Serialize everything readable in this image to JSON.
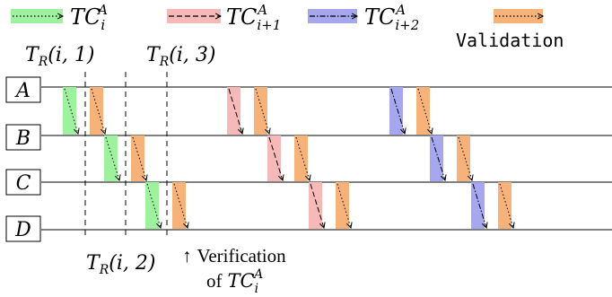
{
  "legend": {
    "items": [
      {
        "id": "tc_i",
        "base": "TC",
        "sub": "i",
        "sup": "A",
        "fill": "#9ef29e",
        "style": "dotted"
      },
      {
        "id": "tc_i1",
        "base": "TC",
        "sub": "i+1",
        "sup": "A",
        "fill": "#f7b8b8",
        "style": "dashed"
      },
      {
        "id": "tc_i2",
        "base": "TC",
        "sub": "i+2",
        "sup": "A",
        "fill": "#a7a7ef",
        "style": "dashdot"
      },
      {
        "id": "validation",
        "label": "Validation",
        "fill": "#f7b27a",
        "style": "dotted"
      }
    ]
  },
  "rows": [
    "A",
    "B",
    "C",
    "D"
  ],
  "timing_labels": {
    "t1": {
      "base": "T",
      "sub": "R",
      "args": "(i, 1)"
    },
    "t2": {
      "base": "T",
      "sub": "R",
      "args": "(i, 2)"
    },
    "t3": {
      "base": "T",
      "sub": "R",
      "args": "(i, 3)"
    }
  },
  "annotation": {
    "arrow": "↑",
    "line1": "Verification",
    "line2_prefix": "of",
    "base": "TC",
    "sub": "i",
    "sup": "A"
  },
  "colors": {
    "green": "#9ef29e",
    "pink": "#f7b8b8",
    "blue": "#a7a7ef",
    "orange": "#f7b27a",
    "line": "#000000"
  }
}
